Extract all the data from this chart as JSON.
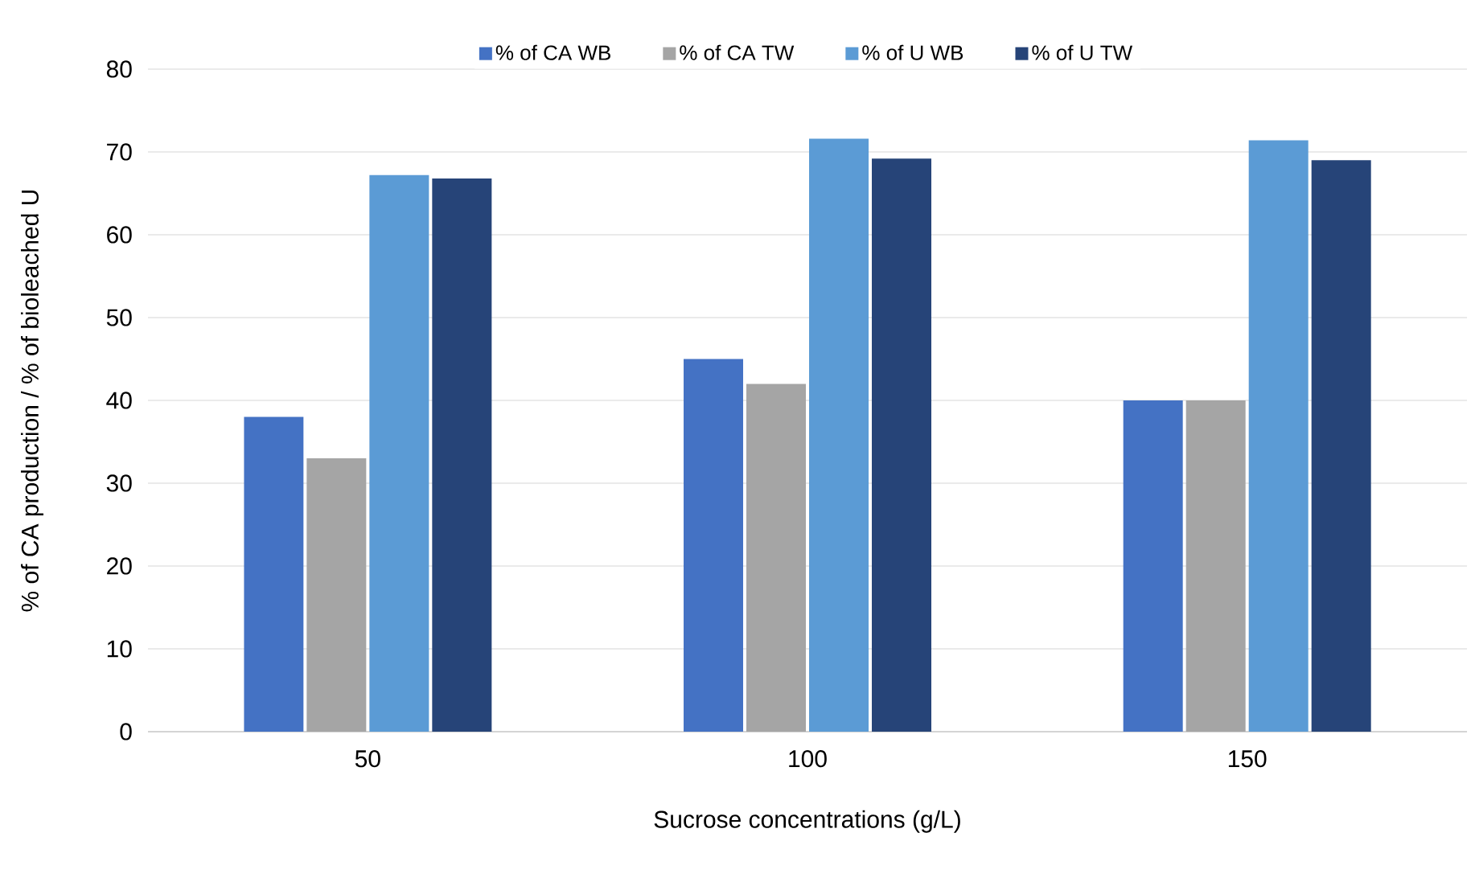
{
  "chart_data": {
    "type": "bar",
    "xlabel": "Sucrose concentrations (g/L)",
    "ylabel": "% of CA production / % of bioleached U",
    "categories": [
      "50",
      "100",
      "150"
    ],
    "series": [
      {
        "name": "% of CA WB",
        "color": "#4472c4",
        "values": [
          38,
          45,
          40
        ]
      },
      {
        "name": "% of CA TW",
        "color": "#a5a5a5",
        "values": [
          33,
          42,
          40
        ]
      },
      {
        "name": "% of U WB",
        "color": "#5b9bd5",
        "values": [
          67.2,
          71.6,
          71.4
        ]
      },
      {
        "name": "% of U TW",
        "color": "#264478",
        "values": [
          66.8,
          69.2,
          69
        ]
      }
    ],
    "ylim": [
      0,
      80
    ],
    "yticks": [
      0,
      10,
      20,
      30,
      40,
      50,
      60,
      70,
      80
    ],
    "grid": "y",
    "legend": "top"
  }
}
